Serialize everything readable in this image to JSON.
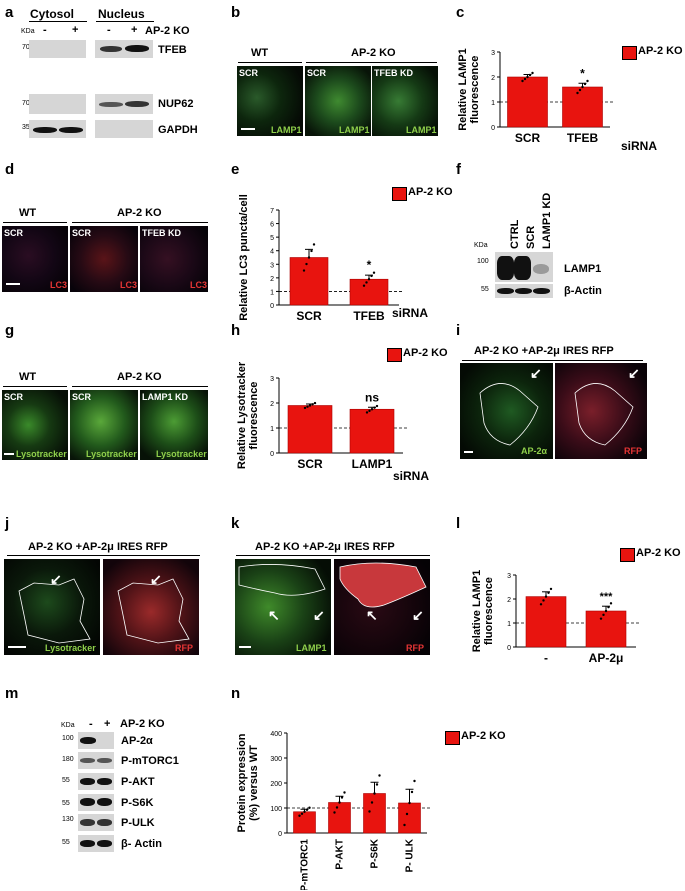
{
  "panels": {
    "a": {
      "label": "a",
      "cytosol": "Cytosol",
      "nucleus": "Nucleus",
      "kda": "KDa",
      "minus": "-",
      "plus": "+",
      "ko": "AP-2 KO",
      "rows": [
        {
          "mw": "70",
          "name": "TFEB"
        },
        {
          "mw": "70",
          "name": "NUP62"
        },
        {
          "mw": "35",
          "name": "GAPDH"
        }
      ]
    },
    "b": {
      "label": "b",
      "wt": "WT",
      "ko": "AP-2 KO",
      "tiles": [
        {
          "tl": "SCR",
          "br": "LAMP1"
        },
        {
          "tl": "SCR",
          "br": "LAMP1"
        },
        {
          "tl": "TFEB KD",
          "br": "LAMP1"
        }
      ]
    },
    "c": {
      "label": "c",
      "ylabel1": "Relative LAMP1",
      "ylabel2": "fluorescence",
      "legend": "AP-2 KO",
      "sirna": "siRNA",
      "sig": "*"
    },
    "d": {
      "label": "d",
      "wt": "WT",
      "ko": "AP-2 KO",
      "tiles": [
        {
          "tl": "SCR",
          "br": "LC3"
        },
        {
          "tl": "SCR",
          "br": "LC3"
        },
        {
          "tl": "TFEB KD",
          "br": "LC3"
        }
      ]
    },
    "e": {
      "label": "e",
      "ylabel": "Relative LC3 puncta/cell",
      "legend": "AP-2 KO",
      "sirna": "siRNA",
      "sig": "*"
    },
    "f": {
      "label": "f",
      "kda": "KDa",
      "lanes": [
        "CTRL",
        "SCR",
        "LAMP1 KD"
      ],
      "rows": [
        {
          "mw": "100",
          "name": "LAMP1"
        },
        {
          "mw": "55",
          "name": "β-Actin"
        }
      ]
    },
    "g": {
      "label": "g",
      "wt": "WT",
      "ko": "AP-2 KO",
      "tiles": [
        {
          "tl": "SCR",
          "br": "Lysotracker"
        },
        {
          "tl": "SCR",
          "br": "Lysotracker"
        },
        {
          "tl": "LAMP1 KD",
          "br": "Lysotracker"
        }
      ]
    },
    "h": {
      "label": "h",
      "ylabel1": "Relative Lysotracker",
      "ylabel2": "fluorescence",
      "legend": "AP-2 KO",
      "sirna": "siRNA",
      "sig": "ns"
    },
    "i": {
      "label": "i",
      "title": "AP-2 KO +AP-2μ IRES RFP",
      "left": "AP-2α",
      "right": "RFP"
    },
    "j": {
      "label": "j",
      "title": "AP-2 KO +AP-2μ IRES RFP",
      "left": "Lysotracker",
      "right": "RFP"
    },
    "k": {
      "label": "k",
      "title": "AP-2 KO +AP-2μ IRES RFP",
      "left": "LAMP1",
      "right": "RFP"
    },
    "l": {
      "label": "l",
      "ylabel1": "Relative LAMP1",
      "ylabel2": "fluorescence",
      "legend": "AP-2 KO",
      "sig": "***"
    },
    "m": {
      "label": "m",
      "kda": "KDa",
      "minus": "-",
      "plus": "+",
      "ko": "AP-2 KO",
      "rows": [
        {
          "mw": "100",
          "name": "AP-2α"
        },
        {
          "mw": "180",
          "name": "P-mTORC1"
        },
        {
          "mw": "55",
          "name": "P-AKT"
        },
        {
          "mw": "55",
          "name": "P-S6K"
        },
        {
          "mw": "130",
          "name": "P-ULK"
        },
        {
          "mw": "55",
          "name": "β- Actin"
        }
      ]
    },
    "n": {
      "label": "n",
      "ylabel1": "Protein expression",
      "ylabel2": "(%) versus WT",
      "legend": "AP-2 KO"
    }
  },
  "chart_data": [
    {
      "panel": "c",
      "type": "bar",
      "categories": [
        "SCR",
        "TFEB"
      ],
      "values": [
        2.0,
        1.6
      ],
      "errors": [
        0.1,
        0.15
      ],
      "ylim": [
        0,
        3
      ],
      "yticks": [
        0,
        1,
        2,
        3
      ],
      "reference_line": 1,
      "ylabel": "Relative LAMP1 fluorescence",
      "legend": "AP-2 KO"
    },
    {
      "panel": "e",
      "type": "bar",
      "categories": [
        "SCR",
        "TFEB"
      ],
      "values": [
        3.5,
        1.9
      ],
      "errors": [
        0.6,
        0.3
      ],
      "ylim": [
        0,
        7
      ],
      "yticks": [
        0,
        1,
        2,
        3,
        4,
        5,
        6,
        7
      ],
      "reference_line": 1,
      "ylabel": "Relative LC3 puncta/cell",
      "legend": "AP-2 KO"
    },
    {
      "panel": "h",
      "type": "bar",
      "categories": [
        "SCR",
        "LAMP1"
      ],
      "values": [
        1.9,
        1.75
      ],
      "errors": [
        0.06,
        0.08
      ],
      "ylim": [
        0,
        3
      ],
      "yticks": [
        0,
        1,
        2,
        3
      ],
      "reference_line": 1,
      "ylabel": "Relative Lysotracker fluorescence",
      "legend": "AP-2 KO"
    },
    {
      "panel": "l",
      "type": "bar",
      "categories": [
        "-",
        "AP-2μ"
      ],
      "values": [
        2.1,
        1.5
      ],
      "errors": [
        0.2,
        0.2
      ],
      "ylim": [
        0,
        3
      ],
      "yticks": [
        0,
        1,
        2,
        3
      ],
      "reference_line": 1,
      "ylabel": "Relative LAMP1 fluorescence",
      "legend": "AP-2 KO"
    },
    {
      "panel": "n",
      "type": "bar",
      "categories": [
        "P-mTORC1",
        "P-AKT",
        "P-S6K",
        "P- ULK"
      ],
      "values": [
        85,
        122,
        158,
        120
      ],
      "errors": [
        10,
        25,
        45,
        55
      ],
      "ylim": [
        0,
        400
      ],
      "yticks": [
        0,
        100,
        200,
        300,
        400
      ],
      "reference_line": 100,
      "ylabel": "Protein expression (%) versus WT",
      "legend": "AP-2 KO"
    }
  ]
}
